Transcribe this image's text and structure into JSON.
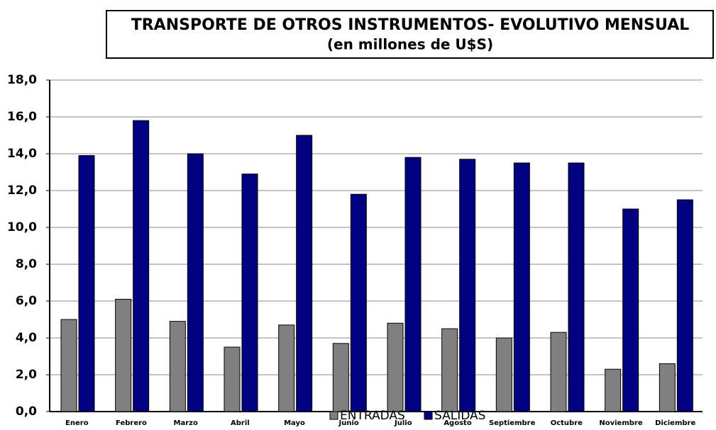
{
  "chart_data": {
    "type": "bar",
    "title": "TRANSPORTE DE OTROS INSTRUMENTOS- EVOLUTIVO MENSUAL",
    "subtitle": "(en millones de U$S)",
    "categories": [
      "Enero",
      "Febrero",
      "Marzo",
      "Abril",
      "Mayo",
      "Junio",
      "Julio",
      "Agosto",
      "Septiembre",
      "Octubre",
      "Noviembre",
      "Diciembre"
    ],
    "series": [
      {
        "name": "ENTRADAS",
        "color": "#808080",
        "values": [
          5.0,
          6.1,
          4.9,
          3.5,
          4.7,
          3.7,
          4.8,
          4.5,
          4.0,
          4.3,
          2.3,
          2.6
        ]
      },
      {
        "name": "SALIDAS",
        "color": "#000080",
        "values": [
          13.9,
          15.8,
          14.0,
          12.9,
          15.0,
          11.8,
          13.8,
          13.7,
          13.5,
          13.5,
          11.0,
          11.5
        ]
      }
    ],
    "ylim": [
      0,
      18
    ],
    "yticks": [
      {
        "value": 0,
        "label": "0,0"
      },
      {
        "value": 2,
        "label": "2,0"
      },
      {
        "value": 4,
        "label": "4,0"
      },
      {
        "value": 6,
        "label": "6,0"
      },
      {
        "value": 8,
        "label": "8,0"
      },
      {
        "value": 10,
        "label": "10,0"
      },
      {
        "value": 12,
        "label": "12,0"
      },
      {
        "value": 14,
        "label": "14,0"
      },
      {
        "value": 16,
        "label": "16,0"
      },
      {
        "value": 18,
        "label": "18,0"
      }
    ],
    "grid": true
  }
}
